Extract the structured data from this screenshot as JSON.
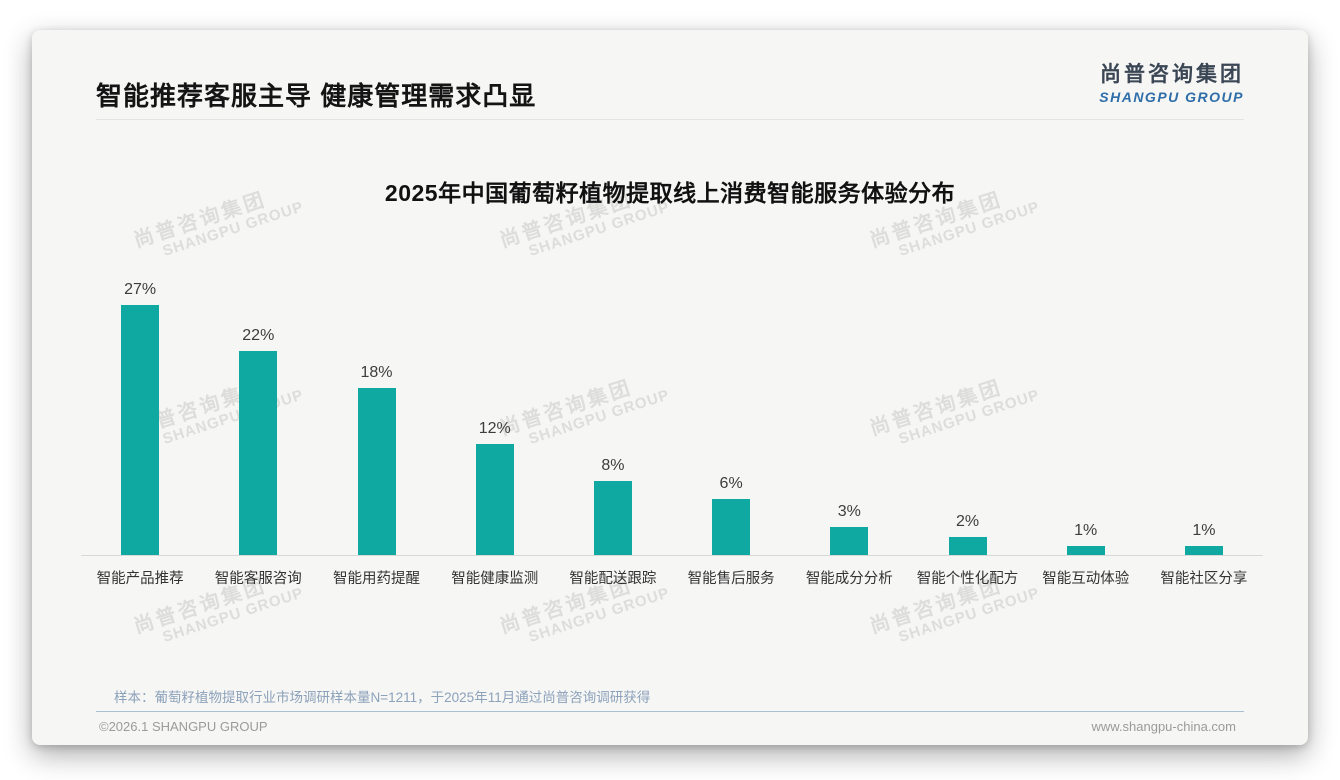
{
  "header": {
    "title": "智能推荐客服主导 健康管理需求凸显"
  },
  "logo": {
    "cn": "尚普咨询集团",
    "en": "SHANGPU GROUP",
    "cn_color": "#3a4654",
    "en_color": "#2e6da8"
  },
  "watermark": {
    "cn": "尚普咨询集团",
    "en": "SHANGPU GROUP"
  },
  "chart_data": {
    "type": "bar",
    "title": "2025年中国葡萄籽植物提取线上消费智能服务体验分布",
    "categories": [
      "智能产品推荐",
      "智能客服咨询",
      "智能用药提醒",
      "智能健康监测",
      "智能配送跟踪",
      "智能售后服务",
      "智能成分分析",
      "智能个性化配方",
      "智能互动体验",
      "智能社区分享"
    ],
    "values": [
      27,
      22,
      18,
      12,
      8,
      6,
      3,
      2,
      1,
      1
    ],
    "unit": "%",
    "value_labels": "above bars",
    "bar_color": "#10a9a1",
    "xlabel": "",
    "ylabel": "",
    "ylim": [
      0,
      30
    ],
    "grid": false,
    "y_axis_visible": false,
    "legend": "none"
  },
  "footnote": "样本：葡萄籽植物提取行业市场调研样本量N=1211，于2025年11月通过尚普咨询调研获得",
  "footer": {
    "copyright": "©2026.1 SHANGPU GROUP",
    "website": "www.shangpu-china.com"
  }
}
